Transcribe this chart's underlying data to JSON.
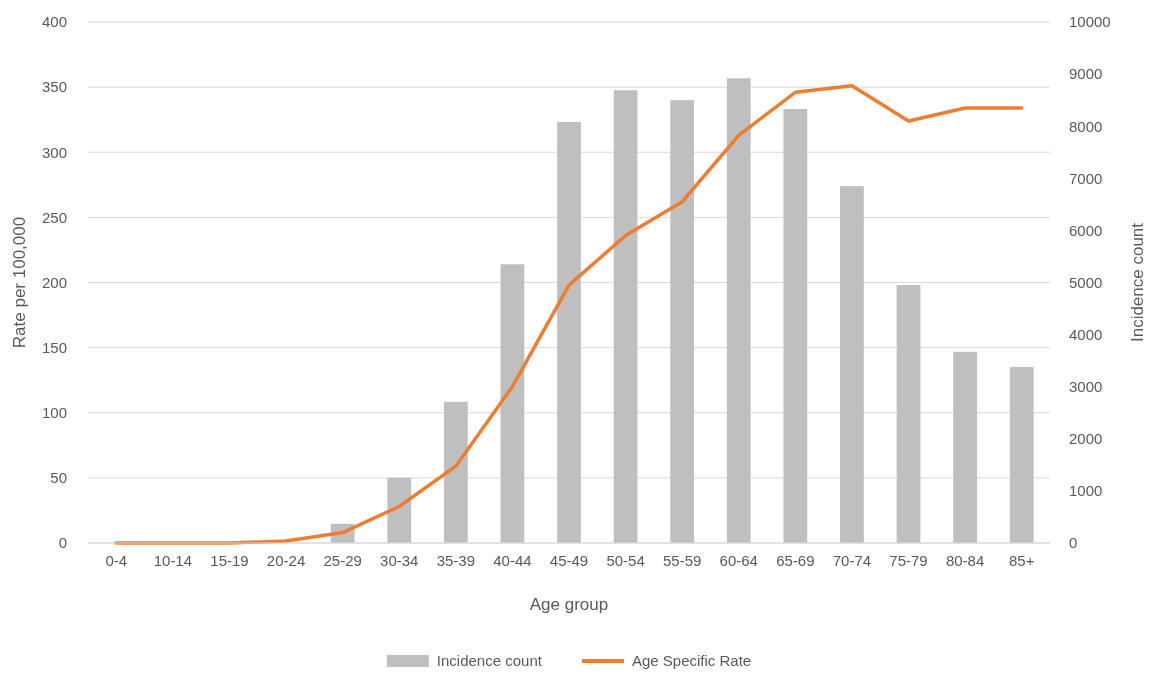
{
  "chart_data": {
    "type": "bar",
    "xlabel": "Age group",
    "ylabel": "Rate per 100,000",
    "y2label": "Incidence count",
    "categories": [
      "0-4",
      "10-14",
      "15-19",
      "20-24",
      "25-29",
      "30-34",
      "35-39",
      "40-44",
      "45-49",
      "50-54",
      "55-59",
      "60-64",
      "65-69",
      "70-74",
      "75-79",
      "80-84",
      "85+"
    ],
    "series": [
      {
        "name": "Incidence count",
        "axis": "y2",
        "color": "#bfbfbf",
        "values": [
          0,
          0,
          0,
          0,
          370,
          1250,
          2710,
          5350,
          8080,
          8690,
          8500,
          8920,
          8330,
          6850,
          4950,
          3670,
          3380
        ]
      },
      {
        "name": "Age Specific Rate",
        "type": "line",
        "axis": "y",
        "color": "#ed7d31",
        "values": [
          0,
          0,
          0,
          1.5,
          8,
          28,
          59,
          120,
          198,
          236,
          262,
          313,
          346,
          351,
          324,
          334,
          334
        ]
      }
    ],
    "ylim": [
      0,
      400
    ],
    "yticks": [
      0,
      50,
      100,
      150,
      200,
      250,
      300,
      350,
      400
    ],
    "y2lim": [
      0,
      10000
    ],
    "y2ticks": [
      0,
      1000,
      2000,
      3000,
      4000,
      5000,
      6000,
      7000,
      8000,
      9000,
      10000
    ],
    "grid": "y",
    "legend": "bottom",
    "marker": "none",
    "line_style": "solid"
  }
}
